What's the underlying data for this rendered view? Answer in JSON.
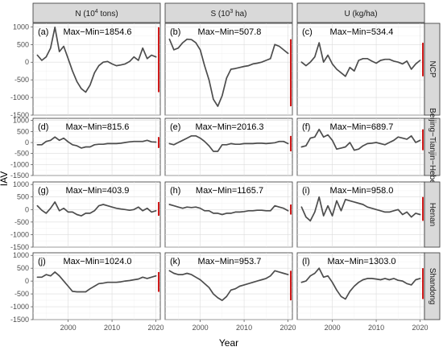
{
  "chart_data": {
    "type": "line",
    "xlabel": "Year",
    "ylabel": "IAV",
    "xlim": [
      1992,
      2021
    ],
    "ylim": [
      -1500,
      1100
    ],
    "x_ticks": [
      2000,
      2010,
      2020
    ],
    "y_ticks": [
      1000,
      500,
      0,
      -500,
      -1000,
      -1500
    ],
    "grid": true,
    "column_labels": [
      {
        "pre": "N (10",
        "sup": "4",
        "post": " tons)"
      },
      {
        "pre": "S (10",
        "sup": "3",
        "post": " ha)"
      },
      {
        "pre": "U (kg/ha)",
        "sup": "",
        "post": ""
      }
    ],
    "row_labels": [
      "NCP",
      "Beijing−Tianjin−Hebei",
      "Henan",
      "Shandong"
    ],
    "x": [
      1993,
      1994,
      1995,
      1996,
      1997,
      1998,
      1999,
      2000,
      2001,
      2002,
      2003,
      2004,
      2005,
      2006,
      2007,
      2008,
      2009,
      2010,
      2011,
      2012,
      2013,
      2014,
      2015,
      2016,
      2017,
      2018,
      2019,
      2020
    ],
    "panels": [
      {
        "tag": "(a)",
        "stat": "Max−Min=1854.6",
        "row": 0,
        "col": 0,
        "values": [
          200,
          50,
          150,
          400,
          990,
          300,
          450,
          100,
          -250,
          -550,
          -750,
          -850,
          -650,
          -300,
          -100,
          0,
          20,
          -50,
          -100,
          -80,
          -50,
          20,
          150,
          50,
          400,
          100,
          200,
          150
        ]
      },
      {
        "tag": "(b)",
        "stat": "Max−Min=507.8",
        "row": 0,
        "col": 1,
        "values": [
          650,
          350,
          400,
          550,
          650,
          640,
          550,
          350,
          -100,
          -500,
          -1050,
          -1250,
          -950,
          -450,
          -200,
          -180,
          -150,
          -120,
          -100,
          -50,
          -30,
          0,
          50,
          100,
          500,
          450,
          350,
          250
        ]
      },
      {
        "tag": "(c)",
        "stat": "Max−Min=534.4",
        "row": 0,
        "col": 2,
        "values": [
          0,
          -100,
          0,
          150,
          550,
          0,
          200,
          -50,
          -200,
          -300,
          -400,
          -150,
          -250,
          50,
          100,
          100,
          30,
          -30,
          50,
          80,
          80,
          30,
          0,
          -50,
          30,
          -200,
          -50,
          50
        ]
      },
      {
        "tag": "(d)",
        "stat": "Max−Min=815.6",
        "row": 1,
        "col": 0,
        "values": [
          -100,
          -100,
          50,
          100,
          250,
          100,
          200,
          30,
          -100,
          -150,
          -250,
          -200,
          -200,
          -100,
          -80,
          -80,
          -50,
          -50,
          -50,
          -30,
          0,
          30,
          50,
          50,
          50,
          100,
          30,
          20
        ]
      },
      {
        "tag": "(e)",
        "stat": "Max−Min=2016.3",
        "row": 1,
        "col": 1,
        "values": [
          -50,
          -100,
          0,
          100,
          200,
          300,
          300,
          200,
          50,
          -150,
          -400,
          -400,
          -100,
          -100,
          -50,
          -80,
          -80,
          -50,
          -50,
          -50,
          -30,
          -30,
          -50,
          -30,
          -10,
          50,
          50,
          -50
        ]
      },
      {
        "tag": "(f)",
        "stat": "Max−Min=689.7",
        "row": 1,
        "col": 2,
        "values": [
          -200,
          -150,
          200,
          250,
          600,
          250,
          350,
          100,
          -300,
          -250,
          -200,
          0,
          -350,
          -300,
          -150,
          -50,
          -30,
          0,
          -50,
          -100,
          0,
          100,
          250,
          200,
          150,
          300,
          0,
          100
        ]
      },
      {
        "tag": "(g)",
        "stat": "Max−Min=403.9",
        "row": 2,
        "col": 0,
        "values": [
          150,
          -30,
          -150,
          50,
          300,
          -50,
          50,
          -100,
          -100,
          -200,
          -250,
          -150,
          -150,
          -50,
          150,
          200,
          150,
          100,
          50,
          20,
          0,
          -30,
          0,
          100,
          -50,
          50,
          -100,
          -50
        ]
      },
      {
        "tag": "(h)",
        "stat": "Max−Min=1165.7",
        "row": 2,
        "col": 1,
        "values": [
          200,
          150,
          100,
          50,
          100,
          80,
          100,
          50,
          -50,
          -50,
          -150,
          -150,
          -200,
          -150,
          -150,
          -100,
          -100,
          -80,
          -50,
          -50,
          -30,
          -30,
          -50,
          -50,
          150,
          100,
          50,
          -50
        ]
      },
      {
        "tag": "(i)",
        "stat": "Max−Min=958.0",
        "row": 2,
        "col": 2,
        "values": [
          100,
          -300,
          -450,
          -100,
          500,
          -250,
          150,
          -250,
          350,
          -50,
          400,
          350,
          300,
          250,
          200,
          100,
          50,
          0,
          -50,
          -100,
          -100,
          -50,
          0,
          -200,
          -100,
          -300,
          -150,
          -200
        ]
      },
      {
        "tag": "(j)",
        "stat": "Max−Min=1024.0",
        "row": 3,
        "col": 0,
        "values": [
          150,
          150,
          250,
          200,
          350,
          200,
          0,
          -200,
          -400,
          -420,
          -420,
          -420,
          -300,
          -200,
          -100,
          -80,
          -50,
          -50,
          -50,
          -30,
          0,
          20,
          50,
          80,
          150,
          100,
          150,
          200
        ]
      },
      {
        "tag": "(k)",
        "stat": "Max−Min=953.7",
        "row": 3,
        "col": 1,
        "values": [
          400,
          300,
          250,
          250,
          300,
          250,
          150,
          50,
          -100,
          -250,
          -500,
          -650,
          -750,
          -600,
          -350,
          -300,
          -200,
          -150,
          -100,
          -50,
          0,
          50,
          100,
          200,
          400,
          350,
          300,
          250
        ]
      },
      {
        "tag": "(l)",
        "stat": "Max−Min=1303.0",
        "row": 3,
        "col": 2,
        "values": [
          -50,
          0,
          200,
          300,
          500,
          150,
          200,
          -50,
          -350,
          -600,
          -700,
          -400,
          -200,
          -50,
          50,
          100,
          100,
          80,
          50,
          100,
          50,
          100,
          30,
          0,
          -100,
          -150,
          50,
          100
        ]
      }
    ]
  }
}
